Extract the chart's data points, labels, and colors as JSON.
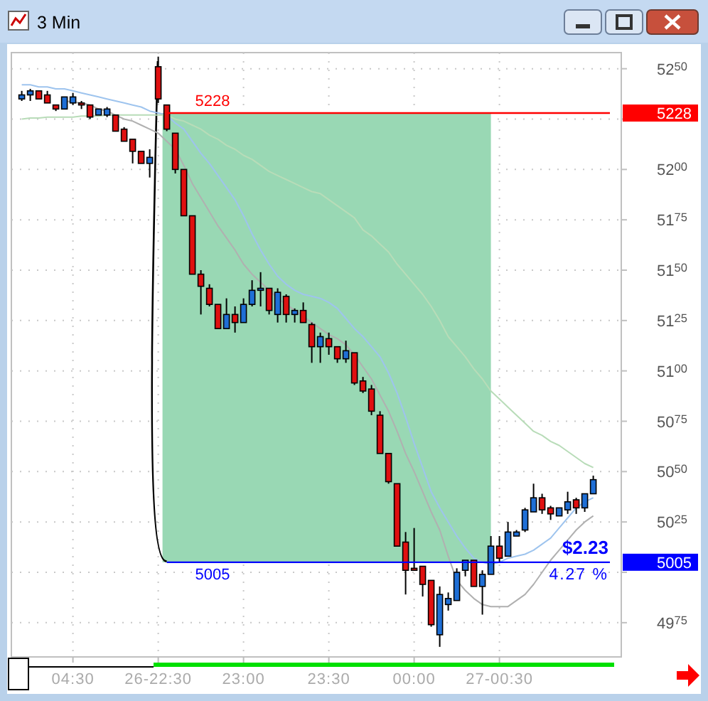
{
  "chart_data": {
    "type": "candlestick",
    "title": "3 Min",
    "categories": [
      null,
      null,
      null,
      null,
      null,
      null,
      "04:30",
      null,
      null,
      null,
      null,
      null,
      null,
      null,
      null,
      null,
      "26-22:30",
      null,
      null,
      null,
      null,
      null,
      null,
      null,
      null,
      null,
      "23:00",
      null,
      null,
      null,
      null,
      null,
      null,
      null,
      null,
      null,
      "23:30",
      null,
      null,
      null,
      null,
      null,
      null,
      null,
      null,
      null,
      "00:00",
      null,
      null,
      null,
      null,
      null,
      null,
      null,
      null,
      null,
      "27-00:30",
      null,
      null,
      null,
      null,
      null,
      null,
      null,
      null,
      null,
      null,
      null
    ],
    "ohlc": [
      [
        5235,
        5239,
        5234,
        5237
      ],
      [
        5237,
        5240,
        5234,
        5239
      ],
      [
        5239,
        5239,
        5235,
        5235
      ],
      [
        5237,
        5239,
        5233,
        5233
      ],
      [
        5232,
        5232,
        5229,
        5230
      ],
      [
        5230,
        5236,
        5230,
        5236
      ],
      [
        5233,
        5238,
        5232,
        5236
      ],
      [
        5233,
        5234,
        5230,
        5232
      ],
      [
        5232,
        5232,
        5225,
        5226
      ],
      [
        5227,
        5230,
        5227,
        5230
      ],
      [
        5227,
        5231,
        5226,
        5230
      ],
      [
        5227,
        5227,
        5219,
        5219
      ],
      [
        5220,
        5221,
        5214,
        5214
      ],
      [
        5215,
        5215,
        5203,
        5209
      ],
      [
        5209,
        5209,
        5203,
        5203
      ],
      [
        5203,
        5210,
        5196,
        5206
      ],
      [
        5251,
        5256,
        5233,
        5235
      ],
      [
        5232,
        5232,
        5219,
        5220
      ],
      [
        5218,
        5218,
        5198,
        5200
      ],
      [
        5200,
        5200,
        5177,
        5177
      ],
      [
        5177,
        5177,
        5148,
        5148
      ],
      [
        5148,
        5150,
        5128,
        5142
      ],
      [
        5141,
        5143,
        5132,
        5133
      ],
      [
        5133,
        5133,
        5121,
        5121
      ],
      [
        5121,
        5136,
        5121,
        5128
      ],
      [
        5128,
        5132,
        5119,
        5124
      ],
      [
        5124,
        5136,
        5124,
        5133
      ],
      [
        5133,
        5145,
        5132,
        5140
      ],
      [
        5140,
        5149,
        5132,
        5141
      ],
      [
        5141,
        5141,
        5128,
        5130
      ],
      [
        5128,
        5141,
        5124,
        5139
      ],
      [
        5137,
        5138,
        5124,
        5128
      ],
      [
        5128,
        5131,
        5124,
        5130
      ],
      [
        5130,
        5134,
        5124,
        5124
      ],
      [
        5123,
        5124,
        5104,
        5112
      ],
      [
        5112,
        5119,
        5104,
        5117
      ],
      [
        5116,
        5119,
        5108,
        5112
      ],
      [
        5112,
        5112,
        5104,
        5106
      ],
      [
        5106,
        5115,
        5104,
        5110
      ],
      [
        5109,
        5109,
        5093,
        5094
      ],
      [
        5095,
        5097,
        5089,
        5090
      ],
      [
        5091,
        5093,
        5078,
        5080
      ],
      [
        5078,
        5080,
        5059,
        5059
      ],
      [
        5059,
        5059,
        5044,
        5045
      ],
      [
        5044,
        5044,
        5013,
        5013
      ],
      [
        5015,
        5020,
        4989,
        5001
      ],
      [
        5002,
        5022,
        5001,
        5001
      ],
      [
        5003,
        5003,
        4988,
        4994
      ],
      [
        4996,
        4996,
        4973,
        4974
      ],
      [
        4969,
        4993,
        4963,
        4989
      ],
      [
        4984,
        4990,
        4981,
        4987
      ],
      [
        4986,
        5002,
        4986,
        5000
      ],
      [
        5001,
        5006,
        4998,
        5006
      ],
      [
        5006,
        5006,
        4993,
        4993
      ],
      [
        4993,
        5001,
        4979,
        4999
      ],
      [
        4999,
        5018,
        4999,
        5013
      ],
      [
        5013,
        5018,
        5005,
        5007
      ],
      [
        5008,
        5025,
        5008,
        5020
      ],
      [
        5018,
        5021,
        5018,
        5020
      ],
      [
        5021,
        5032,
        5020,
        5031
      ],
      [
        5030,
        5044,
        5030,
        5037
      ],
      [
        5037,
        5039,
        5029,
        5031
      ],
      [
        5032,
        5033,
        5026,
        5029
      ],
      [
        5028,
        5032,
        5028,
        5032
      ],
      [
        5031,
        5040,
        5029,
        5035
      ],
      [
        5036,
        5037,
        5029,
        5032
      ],
      [
        5032,
        5039,
        5030,
        5039
      ],
      [
        5039,
        5048,
        5039,
        5046
      ]
    ],
    "series": [
      {
        "type": "line",
        "color": "#9ec4ee",
        "values": [
          5242,
          5242,
          5241,
          5241,
          5240,
          5240,
          5239,
          5238,
          5237,
          5236,
          5235,
          5234,
          5233,
          5232,
          5231,
          5229,
          5228,
          5227,
          5223,
          5220,
          5214,
          5208,
          5203,
          5197,
          5191,
          5185,
          5177,
          5168,
          5160,
          5153,
          5147,
          5143,
          5140,
          5138,
          5137,
          5136,
          5134,
          5131,
          5126,
          5121,
          5117,
          5112,
          5107,
          5099,
          5089,
          5077,
          5064,
          5052,
          5040,
          5032,
          5025,
          5018,
          5012,
          5007,
          5005,
          5004,
          5005,
          5007,
          5008,
          5009,
          5011,
          5014,
          5017,
          5022,
          5027,
          5032,
          5035,
          5037
        ]
      },
      {
        "type": "line",
        "color": "#b0b0b0",
        "values": [
          null,
          null,
          null,
          null,
          null,
          5234,
          5233.5,
          5233,
          5232,
          5230,
          5229,
          5227,
          5225,
          5224,
          5222,
          5220,
          5218,
          5214,
          5210,
          5202,
          5193,
          5186,
          5179,
          5172,
          5166,
          5160,
          5153,
          5148,
          5144,
          5140,
          5136,
          5133,
          5130,
          5127,
          5124,
          5121,
          5118,
          5116,
          5113,
          5108,
          5102,
          5096,
          5088,
          5080,
          5070,
          5059,
          5050,
          5040,
          5030,
          5021,
          5008,
          4996,
          4991,
          4987,
          4984,
          4983,
          4983,
          4983,
          4986,
          4989,
          4994,
          5000,
          5006,
          5011,
          5016,
          5021,
          5025,
          5028
        ]
      },
      {
        "type": "line",
        "color": "#b8dcb8",
        "values": [
          5225,
          5225.5,
          5225.5,
          5226,
          5226,
          5226,
          5226,
          5226.5,
          5226.5,
          5226.5,
          5227,
          5227,
          5227,
          5227,
          5227,
          5227,
          5227,
          5227,
          5225,
          5224,
          5222,
          5220,
          5217,
          5215,
          5212,
          5210,
          5207,
          5205,
          5202,
          5199,
          5197,
          5195,
          5193,
          5191,
          5189,
          5188,
          5185,
          5182,
          5179,
          5176,
          5170,
          5167,
          5163,
          5159,
          5153,
          5148,
          5143,
          5138,
          5132,
          5125,
          5117,
          5112,
          5107,
          5101,
          5096,
          5090,
          5086,
          5082,
          5078,
          5074,
          5070,
          5068,
          5065,
          5063,
          5060,
          5057,
          5054,
          5052
        ]
      }
    ],
    "ylim": [
      4958,
      5258
    ],
    "yticks": [
      4975,
      {
        "value": 5000,
        "label": null
      },
      5025,
      5050,
      5075,
      5100,
      5125,
      5150,
      5175,
      5200,
      {
        "value": 5225,
        "label": null
      },
      5250
    ],
    "grid": true,
    "ref_lines": [
      {
        "axis": "y",
        "value": 5228,
        "label": "5228",
        "color": "#ff0000"
      },
      {
        "axis": "y",
        "value": 5005,
        "label": "5005",
        "color": "#0000ff"
      }
    ],
    "bands": [
      {
        "axis": "y",
        "from": 5005,
        "to": 5228,
        "color": "#99d8b4"
      }
    ],
    "annotations": [
      "$2.23",
      "4.27 %"
    ]
  }
}
